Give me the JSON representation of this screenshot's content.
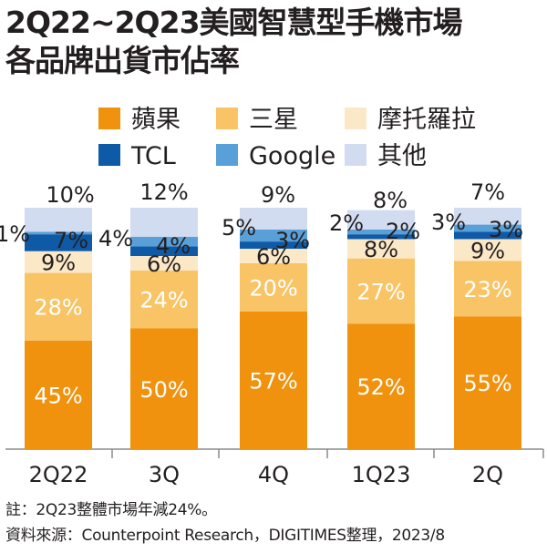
{
  "title": {
    "line1": "2Q22~2Q23美國智慧型手機市場",
    "line2": "各品牌出貨市佔率"
  },
  "footnotes": {
    "note": "註：2Q23整體市場年減24%。",
    "source": "資料來源：Counterpoint Research，DIGITIMES整理，2023/8"
  },
  "colors": {
    "apple": "#f0920e",
    "samsung": "#f8c466",
    "moto": "#fbe8c6",
    "tcl": "#0f5aa6",
    "google": "#5aa0d8",
    "other": "#d2dcf0",
    "axis": "#8a8a8a"
  },
  "chart_data": {
    "type": "bar",
    "stacked": true,
    "categories": [
      "2Q22",
      "3Q",
      "4Q",
      "1Q23",
      "2Q"
    ],
    "series": [
      {
        "name": "蘋果",
        "values": [
          45,
          50,
          57,
          52,
          55
        ]
      },
      {
        "name": "三星",
        "values": [
          28,
          24,
          20,
          27,
          23
        ]
      },
      {
        "name": "摩托羅拉",
        "values": [
          9,
          6,
          6,
          8,
          9
        ]
      },
      {
        "name": "TCL",
        "values": [
          7,
          4,
          3,
          2,
          3
        ]
      },
      {
        "name": "Google",
        "values": [
          1,
          4,
          5,
          2,
          3
        ]
      },
      {
        "name": "其他",
        "values": [
          10,
          12,
          9,
          8,
          7
        ]
      }
    ],
    "value_suffix": "%",
    "ylim": [
      0,
      100
    ]
  }
}
